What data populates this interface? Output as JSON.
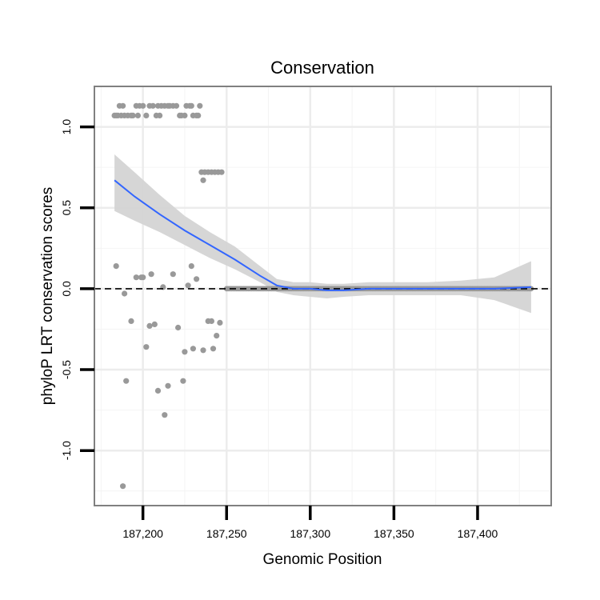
{
  "chart_data": {
    "type": "scatter",
    "title": "Conservation",
    "xlabel": "Genomic Position",
    "ylabel": "phyloP LRT conservation scores",
    "xlim": [
      187171,
      187444
    ],
    "ylim": [
      -1.34,
      1.25
    ],
    "x_ticks": [
      {
        "value": 187200,
        "label": "187,200"
      },
      {
        "value": 187250,
        "label": "187,250"
      },
      {
        "value": 187300,
        "label": "187,300"
      },
      {
        "value": 187350,
        "label": "187,350"
      },
      {
        "value": 187400,
        "label": "187,400"
      }
    ],
    "y_ticks": [
      {
        "value": -1.0,
        "label": "-1.0"
      },
      {
        "value": -0.5,
        "label": "-0.5"
      },
      {
        "value": 0.0,
        "label": "0.0"
      },
      {
        "value": 0.5,
        "label": "0.5"
      },
      {
        "value": 1.0,
        "label": "1.0"
      }
    ],
    "grid": true,
    "reference_line": {
      "y": 0,
      "style": "dashed"
    },
    "colors": {
      "points": "#999999",
      "smooth": "#3366ff",
      "band": "#d4d4d4",
      "axis": "#808080"
    },
    "points": [
      [
        187183,
        1.07
      ],
      [
        187184,
        1.07
      ],
      [
        187185,
        1.07
      ],
      [
        187186,
        1.13
      ],
      [
        187187,
        1.07
      ],
      [
        187188,
        1.13
      ],
      [
        187189,
        1.07
      ],
      [
        187191,
        1.07
      ],
      [
        187193,
        1.07
      ],
      [
        187194,
        1.07
      ],
      [
        187196,
        1.13
      ],
      [
        187197,
        1.07
      ],
      [
        187198,
        1.13
      ],
      [
        187200,
        1.13
      ],
      [
        187202,
        1.07
      ],
      [
        187204,
        1.13
      ],
      [
        187206,
        1.13
      ],
      [
        187208,
        1.07
      ],
      [
        187209,
        1.13
      ],
      [
        187210,
        1.07
      ],
      [
        187211,
        1.13
      ],
      [
        187213,
        1.13
      ],
      [
        187215,
        1.13
      ],
      [
        187216,
        1.13
      ],
      [
        187218,
        1.13
      ],
      [
        187220,
        1.13
      ],
      [
        187222,
        1.07
      ],
      [
        187223,
        1.07
      ],
      [
        187225,
        1.07
      ],
      [
        187226,
        1.13
      ],
      [
        187228,
        1.13
      ],
      [
        187229,
        1.13
      ],
      [
        187230,
        1.07
      ],
      [
        187232,
        1.07
      ],
      [
        187233,
        1.07
      ],
      [
        187234,
        1.13
      ],
      [
        187235,
        0.72
      ],
      [
        187237,
        0.72
      ],
      [
        187239,
        0.72
      ],
      [
        187241,
        0.72
      ],
      [
        187243,
        0.72
      ],
      [
        187245,
        0.72
      ],
      [
        187247,
        0.72
      ],
      [
        187236,
        0.67
      ],
      [
        187184,
        0.14
      ],
      [
        187189,
        -0.03
      ],
      [
        187190,
        -0.57
      ],
      [
        187188,
        -1.22
      ],
      [
        187193,
        -0.2
      ],
      [
        187196,
        0.07
      ],
      [
        187199,
        0.07
      ],
      [
        187200,
        0.07
      ],
      [
        187202,
        -0.36
      ],
      [
        187204,
        -0.23
      ],
      [
        187205,
        0.09
      ],
      [
        187207,
        -0.22
      ],
      [
        187209,
        -0.63
      ],
      [
        187212,
        0.01
      ],
      [
        187213,
        -0.78
      ],
      [
        187215,
        -0.6
      ],
      [
        187218,
        0.09
      ],
      [
        187221,
        -0.24
      ],
      [
        187224,
        -0.57
      ],
      [
        187225,
        -0.39
      ],
      [
        187227,
        0.02
      ],
      [
        187229,
        0.14
      ],
      [
        187230,
        -0.37
      ],
      [
        187232,
        0.06
      ],
      [
        187236,
        -0.38
      ],
      [
        187239,
        -0.2
      ],
      [
        187241,
        -0.2
      ],
      [
        187242,
        -0.37
      ],
      [
        187244,
        -0.29
      ],
      [
        187246,
        -0.21
      ]
    ],
    "zero_points_range": [
      187250,
      187432
    ],
    "smooth": {
      "x": [
        187183,
        187195,
        187210,
        187225,
        187240,
        187255,
        187270,
        187280,
        187290,
        187300,
        187310,
        187320,
        187335,
        187350,
        187370,
        187390,
        187410,
        187432
      ],
      "y": [
        0.67,
        0.57,
        0.46,
        0.36,
        0.27,
        0.18,
        0.08,
        0.02,
        0.0,
        0.0,
        -0.01,
        -0.01,
        0.0,
        0.0,
        0.0,
        0.0,
        0.0,
        0.01
      ],
      "lower": [
        0.48,
        0.42,
        0.35,
        0.27,
        0.19,
        0.12,
        0.04,
        -0.02,
        -0.04,
        -0.05,
        -0.06,
        -0.05,
        -0.04,
        -0.04,
        -0.04,
        -0.04,
        -0.07,
        -0.15
      ],
      "upper": [
        0.83,
        0.72,
        0.58,
        0.45,
        0.35,
        0.26,
        0.14,
        0.06,
        0.04,
        0.04,
        0.03,
        0.03,
        0.04,
        0.04,
        0.04,
        0.05,
        0.07,
        0.17
      ]
    }
  }
}
